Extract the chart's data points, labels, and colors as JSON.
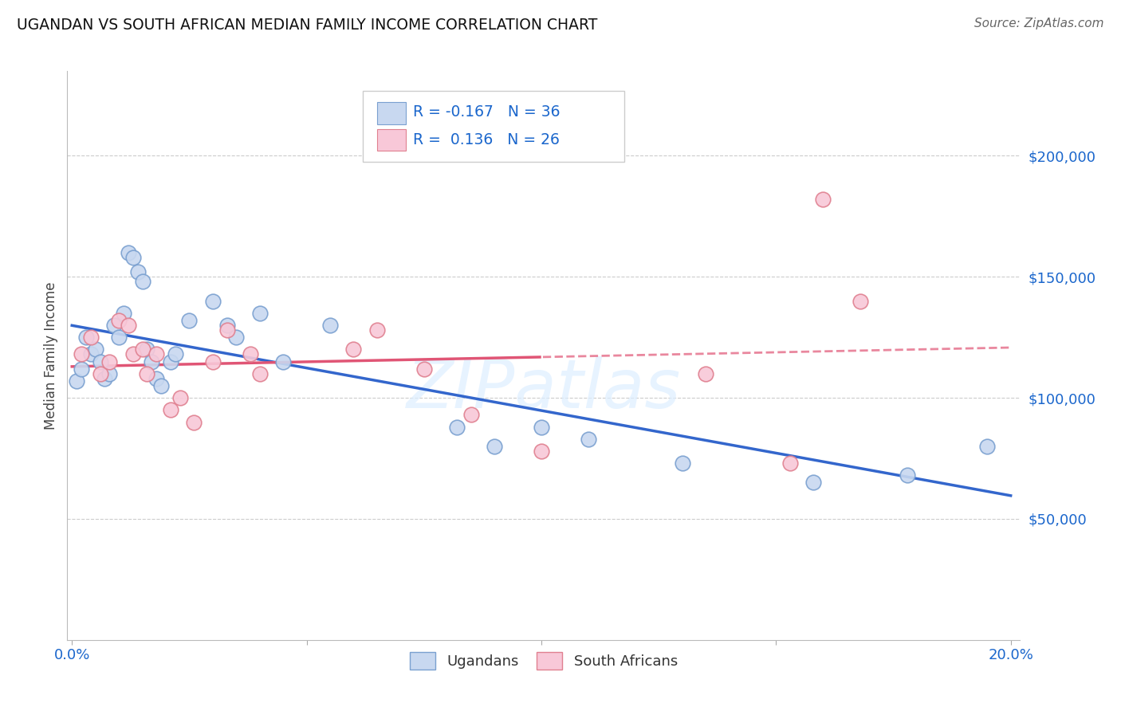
{
  "title": "UGANDAN VS SOUTH AFRICAN MEDIAN FAMILY INCOME CORRELATION CHART",
  "source": "Source: ZipAtlas.com",
  "ylabel": "Median Family Income",
  "xlim": [
    -0.001,
    0.202
  ],
  "ylim": [
    0,
    235000
  ],
  "xticks": [
    0.0,
    0.05,
    0.1,
    0.15,
    0.2
  ],
  "xticklabels": [
    "0.0%",
    "",
    "",
    "",
    "20.0%"
  ],
  "yticks_right": [
    50000,
    100000,
    150000,
    200000
  ],
  "ytick_labels_right": [
    "$50,000",
    "$100,000",
    "$150,000",
    "$200,000"
  ],
  "ugandan_color_face": "#c8d8f0",
  "ugandan_color_edge": "#7aa0d0",
  "sa_color_face": "#f8c8d8",
  "sa_color_edge": "#e08090",
  "ugandan_line_color": "#3366cc",
  "sa_line_color": "#e05575",
  "bg_color": "#ffffff",
  "grid_color": "#cccccc",
  "blue_label_color": "#1a66cc",
  "watermark_text": "ZIPatlas",
  "marker_size": 180,
  "ugandan_x": [
    0.001,
    0.002,
    0.003,
    0.004,
    0.005,
    0.006,
    0.007,
    0.008,
    0.009,
    0.01,
    0.011,
    0.012,
    0.013,
    0.014,
    0.015,
    0.016,
    0.017,
    0.018,
    0.019,
    0.021,
    0.022,
    0.025,
    0.03,
    0.033,
    0.035,
    0.04,
    0.045,
    0.055,
    0.082,
    0.09,
    0.1,
    0.11,
    0.13,
    0.158,
    0.178,
    0.195
  ],
  "ugandan_y": [
    107000,
    112000,
    125000,
    118000,
    120000,
    115000,
    108000,
    110000,
    130000,
    125000,
    135000,
    160000,
    158000,
    152000,
    148000,
    120000,
    115000,
    108000,
    105000,
    115000,
    118000,
    132000,
    140000,
    130000,
    125000,
    135000,
    115000,
    130000,
    88000,
    80000,
    88000,
    83000,
    73000,
    65000,
    68000,
    80000
  ],
  "sa_x": [
    0.002,
    0.004,
    0.006,
    0.008,
    0.01,
    0.012,
    0.013,
    0.015,
    0.016,
    0.018,
    0.021,
    0.023,
    0.026,
    0.03,
    0.033,
    0.038,
    0.04,
    0.06,
    0.065,
    0.075,
    0.085,
    0.1,
    0.135,
    0.153,
    0.16,
    0.168
  ],
  "sa_y": [
    118000,
    125000,
    110000,
    115000,
    132000,
    130000,
    118000,
    120000,
    110000,
    118000,
    95000,
    100000,
    90000,
    115000,
    128000,
    118000,
    110000,
    120000,
    128000,
    112000,
    93000,
    78000,
    110000,
    73000,
    182000,
    140000
  ]
}
